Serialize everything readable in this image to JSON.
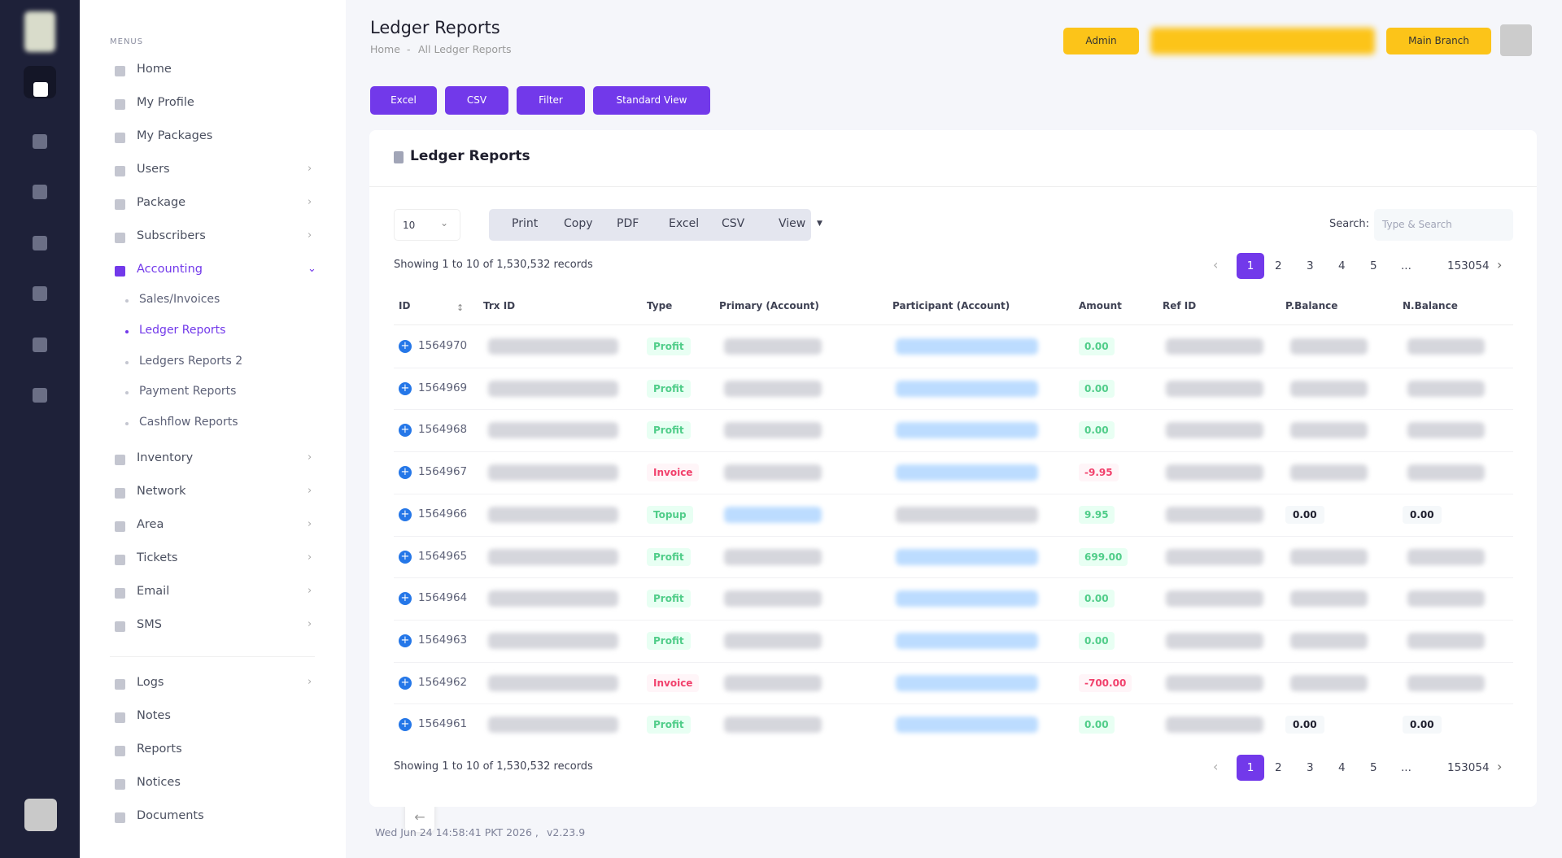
{
  "header": {
    "title": "Ledger Reports",
    "breadcrumb": [
      "Home",
      "-",
      "All Ledger Reports"
    ],
    "admin": "Admin",
    "branch": "Main Branch"
  },
  "actions": [
    "Excel",
    "CSV",
    "Filter",
    "Standard View"
  ],
  "sidebar": {
    "section": "MENUS",
    "items": [
      {
        "label": "Home"
      },
      {
        "label": "My Profile"
      },
      {
        "label": "My Packages"
      },
      {
        "label": "Users",
        "chevron": true
      },
      {
        "label": "Package",
        "chevron": true
      },
      {
        "label": "Subscribers",
        "chevron": true
      },
      {
        "label": "Accounting",
        "chevron": true,
        "active": true,
        "children": [
          "Sales/Invoices",
          "Ledger Reports",
          "Ledgers Reports 2",
          "Payment Reports",
          "Cashflow Reports"
        ]
      },
      {
        "label": "Inventory",
        "chevron": true
      },
      {
        "label": "Network",
        "chevron": true
      },
      {
        "label": "Area",
        "chevron": true
      },
      {
        "label": "Tickets",
        "chevron": true
      },
      {
        "label": "Email",
        "chevron": true
      },
      {
        "label": "SMS",
        "chevron": true
      }
    ],
    "items2": [
      {
        "label": "Logs",
        "chevron": true
      },
      {
        "label": "Notes"
      },
      {
        "label": "Reports"
      },
      {
        "label": "Notices"
      },
      {
        "label": "Documents"
      }
    ]
  },
  "card": {
    "title": "Ledger Reports",
    "length": "10",
    "tools": [
      "Print",
      "Copy",
      "PDF",
      "Excel",
      "CSV",
      "View"
    ],
    "search_label": "Search:",
    "search_placeholder": "Type & Search",
    "info": "Showing 1 to 10 of 1,530,532 records",
    "pages": [
      "1",
      "2",
      "3",
      "4",
      "5",
      "...",
      "153054"
    ],
    "columns": [
      "ID",
      "Trx ID",
      "Type",
      "Primary (Account)",
      "Participant (Account)",
      "Amount",
      "Ref ID",
      "P.Balance",
      "N.Balance"
    ],
    "rows": [
      {
        "id": "1564970",
        "type": "Profit",
        "amount": "0.00"
      },
      {
        "id": "1564969",
        "type": "Profit",
        "amount": "0.00"
      },
      {
        "id": "1564968",
        "type": "Profit",
        "amount": "0.00"
      },
      {
        "id": "1564967",
        "type": "Invoice",
        "amount": "-9.95"
      },
      {
        "id": "1564966",
        "type": "Topup",
        "amount": "9.95",
        "p_balance": "0.00",
        "n_balance": "0.00"
      },
      {
        "id": "1564965",
        "type": "Profit",
        "amount": "699.00"
      },
      {
        "id": "1564964",
        "type": "Profit",
        "amount": "0.00"
      },
      {
        "id": "1564963",
        "type": "Profit",
        "amount": "0.00"
      },
      {
        "id": "1564962",
        "type": "Invoice",
        "amount": "-700.00"
      },
      {
        "id": "1564961",
        "type": "Profit",
        "amount": "0.00",
        "p_balance": "0.00",
        "n_balance": "0.00"
      }
    ]
  },
  "footer": {
    "timestamp": "Wed Jun 24 14:58:41 PKT 2026 ,",
    "version": "v2.23.9"
  }
}
